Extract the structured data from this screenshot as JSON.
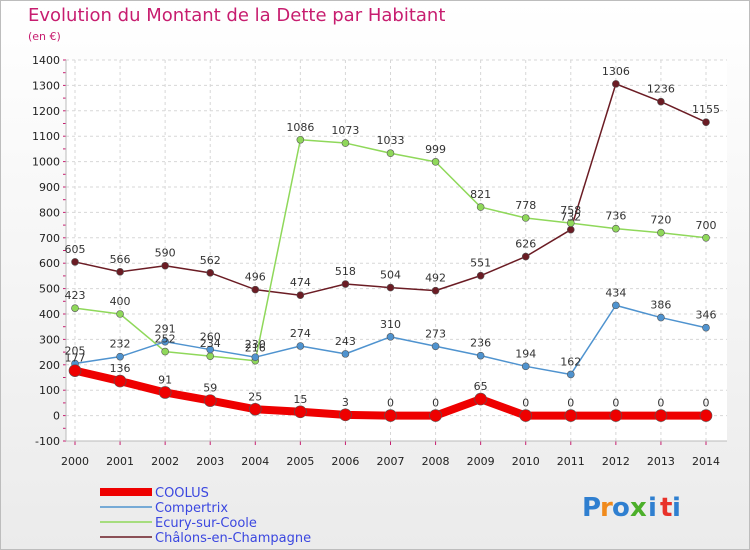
{
  "chart_data": {
    "type": "line",
    "title": "Evolution du Montant de la Dette par Habitant",
    "subtitle": "(en €)",
    "x": [
      "2000",
      "2001",
      "2002",
      "2003",
      "2004",
      "2005",
      "2006",
      "2007",
      "2008",
      "2009",
      "2010",
      "2011",
      "2012",
      "2013",
      "2014"
    ],
    "ylim": [
      -100,
      1400
    ],
    "yticks": [
      -100,
      0,
      100,
      200,
      300,
      400,
      500,
      600,
      700,
      800,
      900,
      1000,
      1100,
      1200,
      1300,
      1400
    ],
    "grid": true,
    "legend_position": "bottom-left",
    "series": [
      {
        "name": "Châlons-en-Champagne",
        "color": "#6b1c24",
        "values": [
          605,
          566,
          590,
          562,
          496,
          474,
          518,
          504,
          492,
          551,
          626,
          732,
          1306,
          1236,
          1155
        ]
      },
      {
        "name": "Ecury-sur-Coole",
        "color": "#8fd85a",
        "values": [
          423,
          400,
          252,
          234,
          216,
          1086,
          1073,
          1033,
          999,
          821,
          778,
          758,
          736,
          720,
          700
        ]
      },
      {
        "name": "Compertrix",
        "color": "#4f93cf",
        "values": [
          205,
          232,
          291,
          260,
          230,
          274,
          243,
          310,
          273,
          236,
          194,
          162,
          434,
          386,
          346
        ]
      },
      {
        "name": "COOLUS",
        "color": "#ee0000",
        "values": [
          177,
          136,
          91,
          59,
          25,
          15,
          3,
          0,
          0,
          65,
          0,
          0,
          0,
          0,
          0
        ]
      }
    ]
  },
  "logo": {
    "letters": [
      "P",
      "r",
      "o",
      "x",
      "i",
      "t",
      "i"
    ]
  }
}
